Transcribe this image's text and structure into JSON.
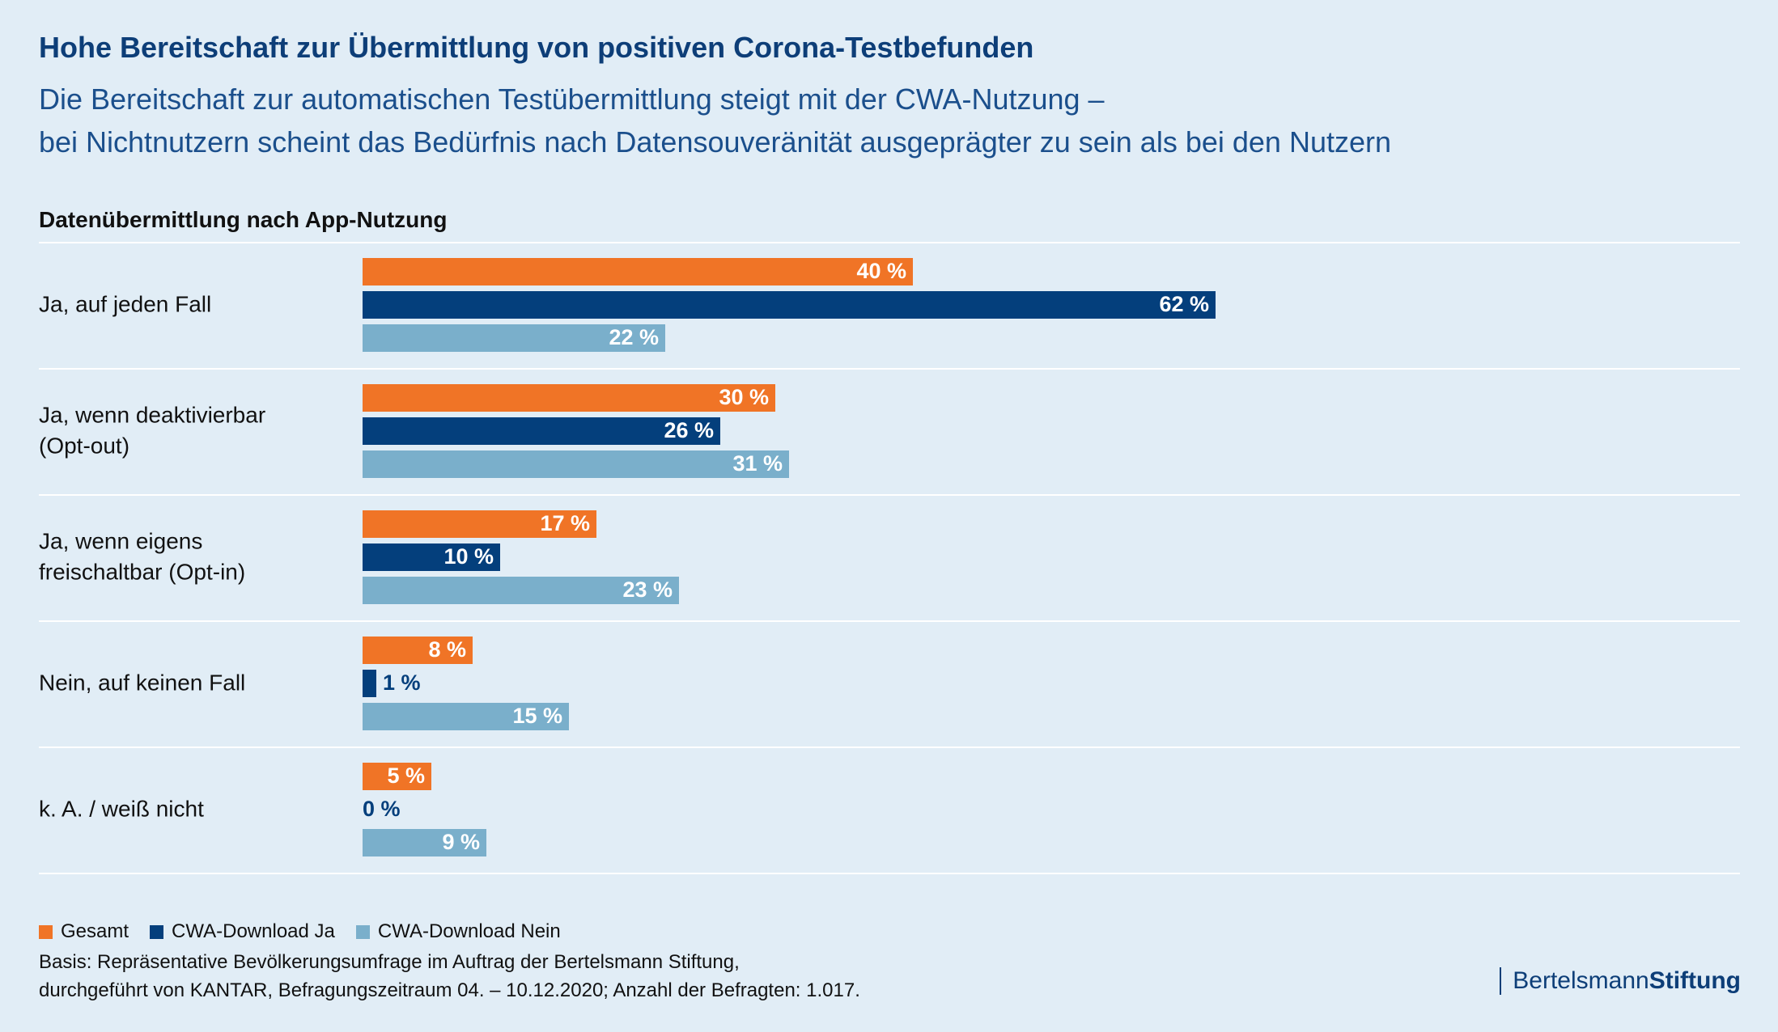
{
  "header": {
    "title": "Hohe Bereitschaft zur Übermittlung von positiven Corona-Testbefunden",
    "subtitle_line1": "Die Bereitschaft zur automatischen Testübermittlung steigt mit der CWA-Nutzung –",
    "subtitle_line2": "bei Nichtnutzern scheint das Bedürfnis nach Datensouveränität ausgeprägter zu sein als bei den Nutzern"
  },
  "chart_data": {
    "type": "bar",
    "orientation": "horizontal",
    "title": "Datenübermittlung nach App-Nutzung",
    "categories": [
      [
        "Ja, auf jeden Fall"
      ],
      [
        "Ja, wenn deaktivierbar",
        "(Opt-out)"
      ],
      [
        "Ja, wenn eigens",
        "freischaltbar (Opt-in)"
      ],
      [
        "Nein, auf keinen Fall"
      ],
      [
        "k. A. / weiß nicht"
      ]
    ],
    "series": [
      {
        "name": "Gesamt",
        "values": [
          40,
          30,
          17,
          8,
          5
        ],
        "color": "#f07426"
      },
      {
        "name": "CWA-Download Ja",
        "values": [
          62,
          26,
          10,
          1,
          0
        ],
        "color": "#043f7c"
      },
      {
        "name": "CWA-Download Nein",
        "values": [
          22,
          31,
          23,
          15,
          9
        ],
        "color": "#7aafcb"
      }
    ],
    "unit": "%",
    "xlim": [
      0,
      100
    ],
    "grid": false,
    "legend_placement": "bottom-left"
  },
  "legend": {
    "items": [
      {
        "label": "Gesamt",
        "color": "#f07426"
      },
      {
        "label": "CWA-Download Ja",
        "color": "#043f7c"
      },
      {
        "label": "CWA-Download Nein",
        "color": "#7aafcb"
      }
    ]
  },
  "footnote": {
    "line1": "Basis: Repräsentative Bevölkerungsumfrage im Auftrag der Bertelsmann Stiftung,",
    "line2": "durchgeführt von KANTAR, Befragungszeitraum 04. – 10.12.2020; Anzahl der Befragten: 1.017."
  },
  "logo": {
    "regular": "Bertelsmann",
    "bold": "Stiftung"
  }
}
